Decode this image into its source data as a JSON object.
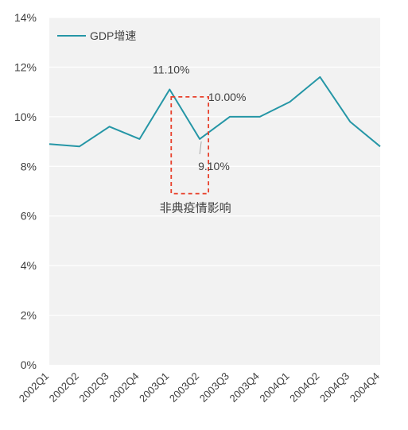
{
  "chart_data": {
    "type": "line",
    "categories": [
      "2002Q1",
      "2002Q2",
      "2002Q3",
      "2002Q4",
      "2003Q1",
      "2003Q2",
      "2003Q3",
      "2003Q4",
      "2004Q1",
      "2004Q2",
      "2004Q3",
      "2004Q4"
    ],
    "series": [
      {
        "name": "GDP增速",
        "values": [
          8.9,
          8.8,
          9.6,
          9.1,
          11.1,
          9.1,
          10.0,
          10.0,
          10.6,
          11.6,
          9.8,
          8.8
        ]
      }
    ],
    "ylim": [
      0,
      14
    ],
    "yticks": [
      0,
      2,
      4,
      6,
      8,
      10,
      12,
      14
    ],
    "ytick_labels": [
      "0%",
      "2%",
      "4%",
      "6%",
      "8%",
      "10%",
      "12%",
      "14%"
    ],
    "grid": "horizontal",
    "legend": "top-left",
    "data_labels": [
      {
        "index": 4,
        "text": "11.10%"
      },
      {
        "index": 5,
        "text": "9.10%"
      },
      {
        "index": 6,
        "text": "10.00%"
      }
    ],
    "annotation": {
      "text": "非典疫情影响",
      "from_index": 4,
      "to_index": 5,
      "y_range": [
        6.9,
        10.8
      ]
    }
  },
  "colors": {
    "series": "#2596a6",
    "grid": "#ffffff",
    "plot_bg": "#f2f2f2",
    "annotation_box": "#e8412c",
    "text": "#404040"
  }
}
